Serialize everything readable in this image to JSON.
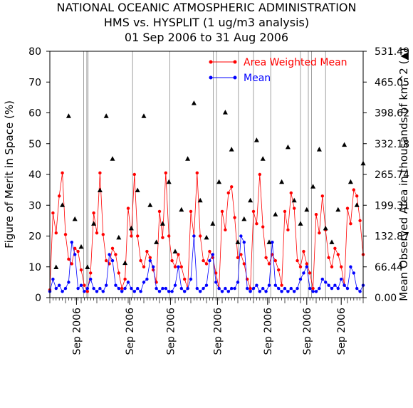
{
  "chart_data": {
    "type": "line",
    "title_lines": [
      "NATIONAL OCEANIC ATMOSPHERIC ADMINISTRATION",
      "HMS vs. HYSPLIT (1 ug/m3 analysis)",
      "01 Sep 2006 to 31 Aug 2006"
    ],
    "ylabel_left": "Figure of Merit in Space (%)",
    "ylabel_right": "Mean Observed Area in thousands of km^2 (▲)",
    "ylim_left": [
      0,
      80
    ],
    "ylim_right": [
      0.0,
      531.49
    ],
    "left_ticks": [
      "0",
      "10",
      "20",
      "30",
      "40",
      "50",
      "60",
      "70",
      "80"
    ],
    "right_ticks": [
      "0.00",
      "66.44",
      "132.87",
      "199.31",
      "265.74",
      "332.18",
      "398.62",
      "465.05",
      "531.49"
    ],
    "x_tick_labels": [
      "Sep 2006",
      "Sep 2006",
      "Sep 2006",
      "Sep 2006",
      "Sep 2006",
      "Sep 2006",
      "Sep 2006"
    ],
    "x_tick_positions": [
      0.085,
      0.255,
      0.385,
      0.535,
      0.695,
      0.82,
      0.93
    ],
    "segment_boundaries": [
      0.108,
      0.118,
      0.122,
      0.264,
      0.383,
      0.522,
      0.532,
      0.602,
      0.65,
      0.705,
      0.8,
      0.825,
      0.835,
      0.88
    ],
    "legend": [
      {
        "label": "Area Weighted Mean",
        "color": "#ff0000"
      },
      {
        "label": "Mean",
        "color": "#0000ff"
      }
    ],
    "grid": false,
    "series": [
      {
        "name": "Area Weighted Mean",
        "color": "#ff0000",
        "x": [
          0.0,
          0.01,
          0.02,
          0.03,
          0.04,
          0.05,
          0.06,
          0.07,
          0.08,
          0.09,
          0.1,
          0.11,
          0.12,
          0.13,
          0.14,
          0.15,
          0.16,
          0.17,
          0.18,
          0.19,
          0.2,
          0.21,
          0.22,
          0.23,
          0.24,
          0.25,
          0.26,
          0.27,
          0.28,
          0.29,
          0.3,
          0.31,
          0.32,
          0.33,
          0.34,
          0.35,
          0.36,
          0.37,
          0.38,
          0.39,
          0.4,
          0.41,
          0.42,
          0.43,
          0.44,
          0.45,
          0.46,
          0.47,
          0.48,
          0.49,
          0.5,
          0.51,
          0.52,
          0.53,
          0.54,
          0.55,
          0.56,
          0.57,
          0.58,
          0.59,
          0.6,
          0.61,
          0.62,
          0.63,
          0.64,
          0.65,
          0.66,
          0.67,
          0.68,
          0.69,
          0.7,
          0.71,
          0.72,
          0.73,
          0.74,
          0.75,
          0.76,
          0.77,
          0.78,
          0.79,
          0.8,
          0.81,
          0.82,
          0.83,
          0.84,
          0.85,
          0.86,
          0.87,
          0.88,
          0.89,
          0.9,
          0.91,
          0.92,
          0.93,
          0.94,
          0.95,
          0.96,
          0.97,
          0.98,
          0.99,
          1.0
        ],
        "y": [
          2.5,
          27.5,
          21,
          33,
          40.5,
          20.5,
          12.5,
          11,
          16,
          15,
          9,
          4,
          2,
          8,
          27.5,
          21,
          40.5,
          20.5,
          12,
          11,
          16,
          14,
          8,
          3,
          6,
          29,
          20,
          40,
          20,
          12,
          10,
          15,
          13,
          9,
          5,
          28,
          19.5,
          40.5,
          20,
          12,
          10,
          14,
          10,
          6,
          3,
          28,
          20,
          40.5,
          20,
          12,
          11,
          15,
          13,
          8,
          3,
          28,
          22,
          34,
          36,
          26,
          13,
          14,
          11,
          6,
          3,
          28,
          24,
          40,
          23,
          13,
          11,
          14,
          12,
          9,
          4,
          28,
          22,
          34,
          29,
          12,
          10,
          15,
          11,
          8,
          3,
          27,
          21,
          33,
          22,
          13,
          10,
          16,
          14,
          10,
          4,
          29,
          24,
          35,
          33,
          25,
          14
        ]
      },
      {
        "name": "Mean",
        "color": "#0000ff",
        "x": [
          0.0,
          0.01,
          0.02,
          0.03,
          0.04,
          0.05,
          0.06,
          0.07,
          0.08,
          0.09,
          0.1,
          0.11,
          0.12,
          0.13,
          0.14,
          0.15,
          0.16,
          0.17,
          0.18,
          0.19,
          0.2,
          0.21,
          0.22,
          0.23,
          0.24,
          0.25,
          0.26,
          0.27,
          0.28,
          0.29,
          0.3,
          0.31,
          0.32,
          0.33,
          0.34,
          0.35,
          0.36,
          0.37,
          0.38,
          0.39,
          0.4,
          0.41,
          0.42,
          0.43,
          0.44,
          0.45,
          0.46,
          0.47,
          0.48,
          0.49,
          0.5,
          0.51,
          0.52,
          0.53,
          0.54,
          0.55,
          0.56,
          0.57,
          0.58,
          0.59,
          0.6,
          0.61,
          0.62,
          0.63,
          0.64,
          0.65,
          0.66,
          0.67,
          0.68,
          0.69,
          0.7,
          0.71,
          0.72,
          0.73,
          0.74,
          0.75,
          0.76,
          0.77,
          0.78,
          0.79,
          0.8,
          0.81,
          0.82,
          0.83,
          0.84,
          0.85,
          0.86,
          0.87,
          0.88,
          0.89,
          0.9,
          0.91,
          0.92,
          0.93,
          0.94,
          0.95,
          0.96,
          0.97,
          0.98,
          0.99,
          1.0
        ],
        "y": [
          2,
          6,
          3,
          4,
          2,
          3,
          5,
          18,
          14,
          3,
          4,
          2,
          3,
          6,
          3,
          2,
          3,
          2,
          4,
          14,
          12,
          4,
          3,
          2,
          3,
          5,
          3,
          2,
          3,
          2,
          5,
          6,
          12,
          10,
          3,
          2,
          3,
          3,
          2,
          2,
          4,
          10,
          3,
          2,
          3,
          6,
          20,
          3,
          2,
          3,
          4,
          12,
          14,
          5,
          3,
          2,
          3,
          2,
          3,
          3,
          5,
          20,
          18,
          3,
          2,
          3,
          4,
          2,
          3,
          2,
          4,
          18,
          4,
          3,
          2,
          3,
          2,
          3,
          2,
          3,
          6,
          8,
          10,
          3,
          2,
          2,
          3,
          6,
          5,
          4,
          3,
          4,
          3,
          6,
          4,
          3,
          10,
          8,
          3,
          2,
          4
        ]
      },
      {
        "name": "Mean Observed Area (▲)",
        "color": "#000000",
        "axis": "right",
        "x": [
          0.02,
          0.04,
          0.06,
          0.08,
          0.1,
          0.12,
          0.14,
          0.16,
          0.18,
          0.2,
          0.22,
          0.24,
          0.26,
          0.28,
          0.3,
          0.32,
          0.34,
          0.36,
          0.38,
          0.4,
          0.42,
          0.44,
          0.46,
          0.48,
          0.5,
          0.52,
          0.54,
          0.56,
          0.58,
          0.6,
          0.62,
          0.64,
          0.66,
          0.68,
          0.7,
          0.72,
          0.74,
          0.76,
          0.78,
          0.8,
          0.82,
          0.84,
          0.86,
          0.88,
          0.9,
          0.92,
          0.94,
          0.96,
          0.98,
          1.0
        ],
        "y": [
          66,
          200,
          392,
          170,
          110,
          66,
          160,
          232,
          392,
          300,
          130,
          75,
          150,
          232,
          392,
          200,
          120,
          160,
          250,
          100,
          190,
          300,
          420,
          210,
          130,
          160,
          250,
          400,
          320,
          120,
          170,
          210,
          340,
          300,
          120,
          180,
          250,
          325,
          210,
          160,
          190,
          240,
          320,
          150,
          120,
          190,
          330,
          250,
          200,
          290
        ]
      }
    ]
  }
}
